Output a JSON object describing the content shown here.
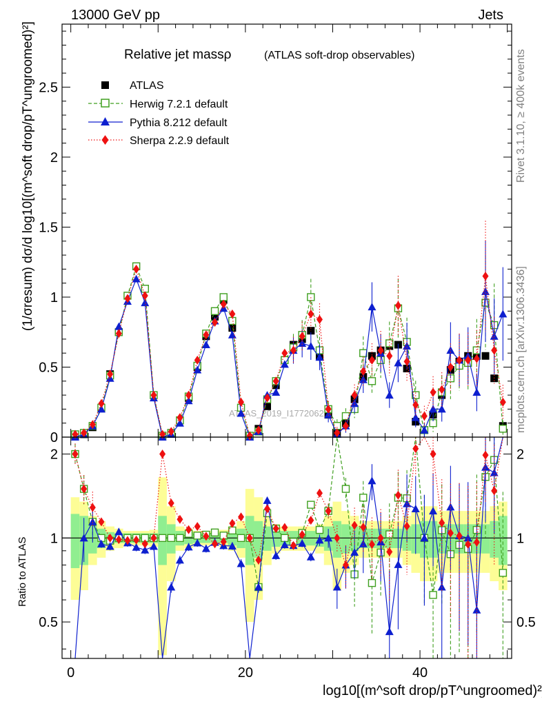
{
  "header": {
    "beam": "13000 GeV pp",
    "category": "Jets",
    "rivet": "Rivet 3.1.10, ≥ 400k events",
    "mcplots": "mcplots.cern.ch [arXiv:1306.3436]",
    "analysis_id": "ATLAS_2019_I1772062"
  },
  "chart_data": {
    "type": "line",
    "title": "Relative jet massρ",
    "subtitle": "(ATLAS soft-drop observables)",
    "xlabel": "log10[(m^soft drop/pT^ungroomed)²]",
    "ylabel": "(1/σresum) dσ/d log10[(m^soft drop/pT^ungroomed)²]",
    "ratio_ylabel": "Ratio to ATLAS",
    "xlim": [
      -1,
      50.5
    ],
    "ylim": [
      0,
      2.95
    ],
    "ratio_ylim": [
      0.37,
      2.3
    ],
    "x_ticks": [
      0,
      20,
      40
    ],
    "y_ticks": [
      0,
      0.5,
      1,
      1.5,
      2,
      2.5
    ],
    "ratio_ticks": [
      0.5,
      1,
      2
    ],
    "x": [
      0.5,
      1.5,
      2.5,
      3.5,
      4.5,
      5.5,
      6.5,
      7.5,
      8.5,
      9.5,
      10.5,
      11.5,
      12.5,
      13.5,
      14.5,
      15.5,
      16.5,
      17.5,
      18.5,
      19.5,
      20.5,
      21.5,
      22.5,
      23.5,
      24.5,
      25.5,
      26.5,
      27.5,
      28.5,
      29.5,
      30.5,
      31.5,
      32.5,
      33.5,
      34.5,
      35.5,
      36.5,
      37.5,
      38.5,
      39.5,
      40.5,
      41.5,
      42.5,
      43.5,
      44.5,
      45.5,
      46.5,
      47.5,
      48.5,
      49.5
    ],
    "band_outer": [
      0.4,
      0.35,
      0.2,
      0.15,
      0.1,
      0.08,
      0.06,
      0.06,
      0.06,
      0.07,
      0.65,
      0.3,
      0.1,
      0.08,
      0.06,
      0.06,
      0.06,
      0.07,
      0.1,
      0.15,
      0.5,
      0.4,
      0.2,
      0.12,
      0.1,
      0.1,
      0.1,
      0.1,
      0.12,
      0.2,
      0.35,
      0.25,
      0.2,
      0.15,
      0.15,
      0.15,
      0.15,
      0.15,
      0.2,
      0.25,
      0.3,
      0.3,
      0.25,
      0.25,
      0.25,
      0.25,
      0.25,
      0.25,
      0.3,
      0.35
    ],
    "band_inner": [
      0.22,
      0.2,
      0.12,
      0.08,
      0.05,
      0.04,
      0.04,
      0.04,
      0.04,
      0.04,
      0.2,
      0.12,
      0.06,
      0.05,
      0.04,
      0.04,
      0.04,
      0.04,
      0.06,
      0.08,
      0.2,
      0.15,
      0.1,
      0.07,
      0.06,
      0.06,
      0.06,
      0.06,
      0.07,
      0.1,
      0.15,
      0.12,
      0.1,
      0.08,
      0.08,
      0.08,
      0.08,
      0.08,
      0.1,
      0.12,
      0.15,
      0.15,
      0.12,
      0.12,
      0.12,
      0.12,
      0.12,
      0.12,
      0.15,
      0.2
    ],
    "series": [
      {
        "name": "ATLAS",
        "color": "#000000",
        "values": [
          0.01,
          0.02,
          0.07,
          0.21,
          0.45,
          0.75,
          1.01,
          1.22,
          1.06,
          0.3,
          0.01,
          0.03,
          0.12,
          0.28,
          0.5,
          0.72,
          0.86,
          0.98,
          0.78,
          0.21,
          0.01,
          0.06,
          0.22,
          0.37,
          0.55,
          0.66,
          0.7,
          0.76,
          0.58,
          0.16,
          0.03,
          0.1,
          0.27,
          0.43,
          0.58,
          0.62,
          0.65,
          0.66,
          0.49,
          0.11,
          0.05,
          0.16,
          0.3,
          0.48,
          0.54,
          0.58,
          0.58,
          0.58,
          0.42,
          0.08
        ]
      },
      {
        "name": "Herwig 7.2.1 default",
        "color": "#3f9f1f",
        "values": [
          0.02,
          0.03,
          0.08,
          0.21,
          0.44,
          0.75,
          1.01,
          1.22,
          1.06,
          0.3,
          0.01,
          0.03,
          0.12,
          0.29,
          0.51,
          0.74,
          0.9,
          1.0,
          0.83,
          0.21,
          0.01,
          0.04,
          0.27,
          0.4,
          0.55,
          0.64,
          0.73,
          1.0,
          0.62,
          0.2,
          0.08,
          0.15,
          0.2,
          0.6,
          0.4,
          0.55,
          0.67,
          0.92,
          0.68,
          0.3,
          0.05,
          0.1,
          0.32,
          0.42,
          0.51,
          0.53,
          0.62,
          0.96,
          0.8,
          0.06
        ]
      },
      {
        "name": "Pythia 8.212 default",
        "color": "#0d1fcf",
        "values": [
          0.0,
          0.02,
          0.08,
          0.2,
          0.42,
          0.79,
          0.97,
          1.13,
          0.96,
          0.28,
          0.0,
          0.02,
          0.1,
          0.26,
          0.48,
          0.66,
          0.83,
          0.92,
          0.73,
          0.17,
          0.0,
          0.04,
          0.3,
          0.32,
          0.52,
          0.62,
          0.67,
          0.65,
          0.57,
          0.16,
          0.02,
          0.08,
          0.24,
          0.41,
          0.93,
          0.6,
          0.3,
          0.53,
          0.65,
          0.14,
          0.05,
          0.2,
          0.2,
          0.62,
          0.55,
          0.58,
          0.32,
          1.04,
          0.72,
          0.88
        ]
      },
      {
        "name": "Sherpa 2.2.9 default",
        "color": "#ee1111",
        "values": [
          0.02,
          0.03,
          0.09,
          0.24,
          0.45,
          0.74,
          0.99,
          1.2,
          1.01,
          0.3,
          0.02,
          0.04,
          0.14,
          0.3,
          0.55,
          0.73,
          0.82,
          0.95,
          0.88,
          0.25,
          0.01,
          0.05,
          0.28,
          0.4,
          0.6,
          0.62,
          0.72,
          0.88,
          0.84,
          0.2,
          0.03,
          0.08,
          0.3,
          0.47,
          0.55,
          0.62,
          0.58,
          0.94,
          0.54,
          0.23,
          0.15,
          0.32,
          0.34,
          0.5,
          0.55,
          0.55,
          0.56,
          1.15,
          0.62,
          0.25
        ]
      }
    ]
  }
}
